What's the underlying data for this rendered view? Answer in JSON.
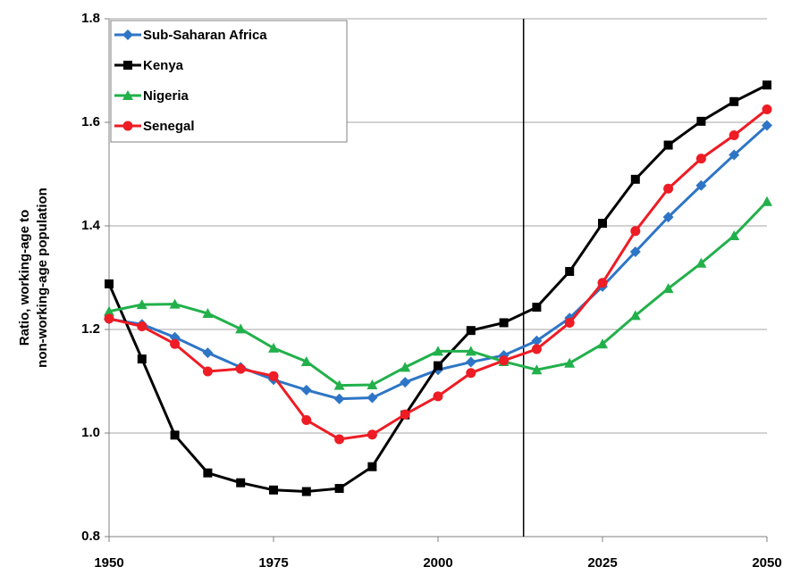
{
  "chart_data": {
    "type": "line",
    "ylabel": [
      "Ratio, working-age to",
      "non-working-age population"
    ],
    "x": [
      1950,
      1955,
      1960,
      1965,
      1970,
      1975,
      1980,
      1985,
      1990,
      1995,
      2000,
      2005,
      2010,
      2015,
      2020,
      2025,
      2030,
      2035,
      2040,
      2045,
      2050
    ],
    "series": [
      {
        "name": "Sub-Saharan Africa",
        "color": "#2e75c6",
        "marker": "diamond",
        "values": [
          1.22,
          1.21,
          1.185,
          1.155,
          1.127,
          1.103,
          1.083,
          1.066,
          1.068,
          1.098,
          1.122,
          1.137,
          1.15,
          1.178,
          1.222,
          1.283,
          1.35,
          1.417,
          1.478,
          1.537,
          1.594
        ]
      },
      {
        "name": "Kenya",
        "color": "#000000",
        "marker": "square",
        "values": [
          1.288,
          1.143,
          0.996,
          0.923,
          0.904,
          0.89,
          0.887,
          0.893,
          0.935,
          1.035,
          1.13,
          1.198,
          1.213,
          1.243,
          1.312,
          1.405,
          1.49,
          1.556,
          1.602,
          1.64,
          1.672
        ]
      },
      {
        "name": "Nigeria",
        "color": "#22b04b",
        "marker": "triangle",
        "values": [
          1.235,
          1.248,
          1.249,
          1.231,
          1.201,
          1.164,
          1.138,
          1.092,
          1.093,
          1.127,
          1.158,
          1.158,
          1.138,
          1.122,
          1.135,
          1.172,
          1.227,
          1.279,
          1.328,
          1.381,
          1.447
        ]
      },
      {
        "name": "Senegal",
        "color": "#ee1c24",
        "marker": "circle",
        "values": [
          1.221,
          1.206,
          1.172,
          1.119,
          1.124,
          1.11,
          1.025,
          0.988,
          0.997,
          1.036,
          1.071,
          1.116,
          1.14,
          1.162,
          1.213,
          1.29,
          1.39,
          1.472,
          1.53,
          1.575,
          1.625
        ]
      }
    ],
    "xlim": [
      1950,
      2050
    ],
    "xticks": [
      1950,
      1975,
      2000,
      2025,
      2050
    ],
    "ylim": [
      0.8,
      1.8
    ],
    "yticks": [
      0.8,
      {
        "value": 1.0,
        "label": "1.0"
      },
      1.2,
      1.4,
      1.6,
      1.8
    ],
    "grid": true,
    "legend": "upper left",
    "vline": 2013
  }
}
